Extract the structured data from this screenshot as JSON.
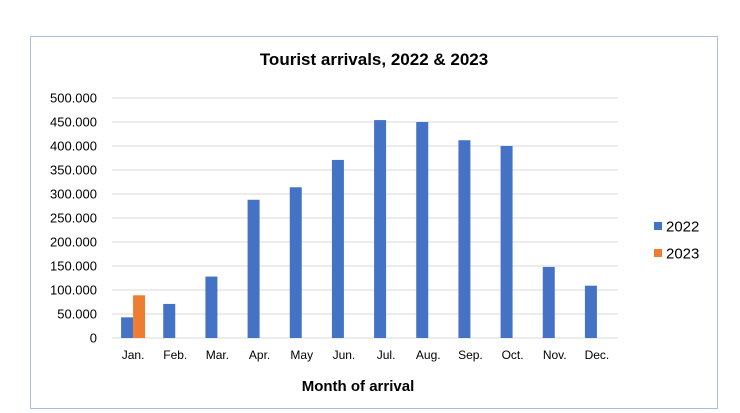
{
  "chart_data": {
    "type": "bar",
    "title": "Tourist arrivals, 2022 & 2023",
    "xlabel": "Month of arrival",
    "ylabel": "",
    "ylim": [
      0,
      500000
    ],
    "yticks": [
      0,
      50000,
      100000,
      150000,
      200000,
      250000,
      300000,
      350000,
      400000,
      450000,
      500000
    ],
    "ytick_labels": [
      "0",
      "50.000",
      "100.000",
      "150.000",
      "200.000",
      "250.000",
      "300.000",
      "350.000",
      "400.000",
      "450.000",
      "500.000"
    ],
    "grid": true,
    "legend": "right",
    "categories": [
      "Jan.",
      "Feb.",
      "Mar.",
      "Apr.",
      "May",
      "Jun.",
      "Jul.",
      "Aug.",
      "Sep.",
      "Oct.",
      "Nov.",
      "Dec."
    ],
    "series": [
      {
        "name": "2022",
        "color": "#4472c4",
        "values": [
          43000,
          71000,
          128000,
          288000,
          314000,
          371000,
          454000,
          450000,
          412000,
          400000,
          148000,
          109000
        ]
      },
      {
        "name": "2023",
        "color": "#ed7d31",
        "values": [
          89000,
          null,
          null,
          null,
          null,
          null,
          null,
          null,
          null,
          null,
          null,
          null
        ]
      }
    ]
  }
}
